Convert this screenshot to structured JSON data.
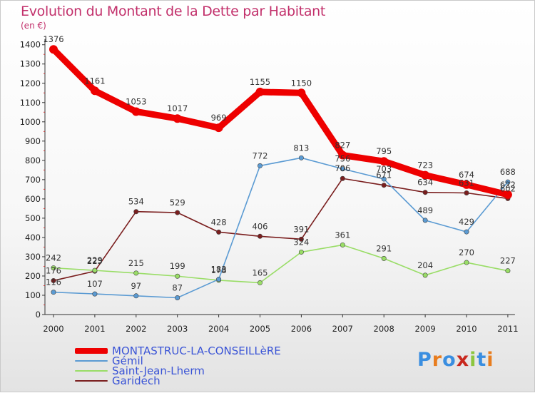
{
  "chart_data": {
    "type": "line",
    "title": "Evolution du Montant de la Dette par Habitant",
    "unit_label": "(en €)",
    "x": [
      "2000",
      "2001",
      "2002",
      "2003",
      "2004",
      "2005",
      "2006",
      "2007",
      "2008",
      "2009",
      "2010",
      "2011"
    ],
    "ylim": [
      0,
      1400
    ],
    "yticks": [
      0,
      100,
      200,
      300,
      400,
      500,
      600,
      700,
      800,
      900,
      1000,
      1100,
      1200,
      1300,
      1400
    ],
    "grid": false,
    "legend_position": "bottom-left",
    "series": [
      {
        "name": "MONTASTRUC-LA-CONSEILLèRE",
        "color": "#ee0000",
        "values": [
          1376,
          1161,
          1053,
          1017,
          969,
          1155,
          1150,
          827,
          795,
          723,
          674,
          622
        ]
      },
      {
        "name": "Gémil",
        "color": "#5b9bd3",
        "values": [
          116,
          107,
          97,
          87,
          183,
          772,
          813,
          756,
          703,
          489,
          429,
          688
        ]
      },
      {
        "name": "Saint-Jean-Lherm",
        "color": "#99dd66",
        "values": [
          242,
          229,
          215,
          199,
          178,
          165,
          324,
          361,
          291,
          204,
          270,
          227
        ]
      },
      {
        "name": "Garidech",
        "color": "#7a1e1e",
        "values": [
          176,
          225,
          534,
          529,
          428,
          406,
          391,
          706,
          671,
          634,
          631,
          602
        ]
      }
    ]
  },
  "logo": {
    "text": "Proxiti",
    "letter_colors": [
      "#3a8ee0",
      "#e87d1e",
      "#3a8ee0",
      "#c8281e",
      "#8cc63f",
      "#3a8ee0",
      "#e87d1e"
    ]
  }
}
